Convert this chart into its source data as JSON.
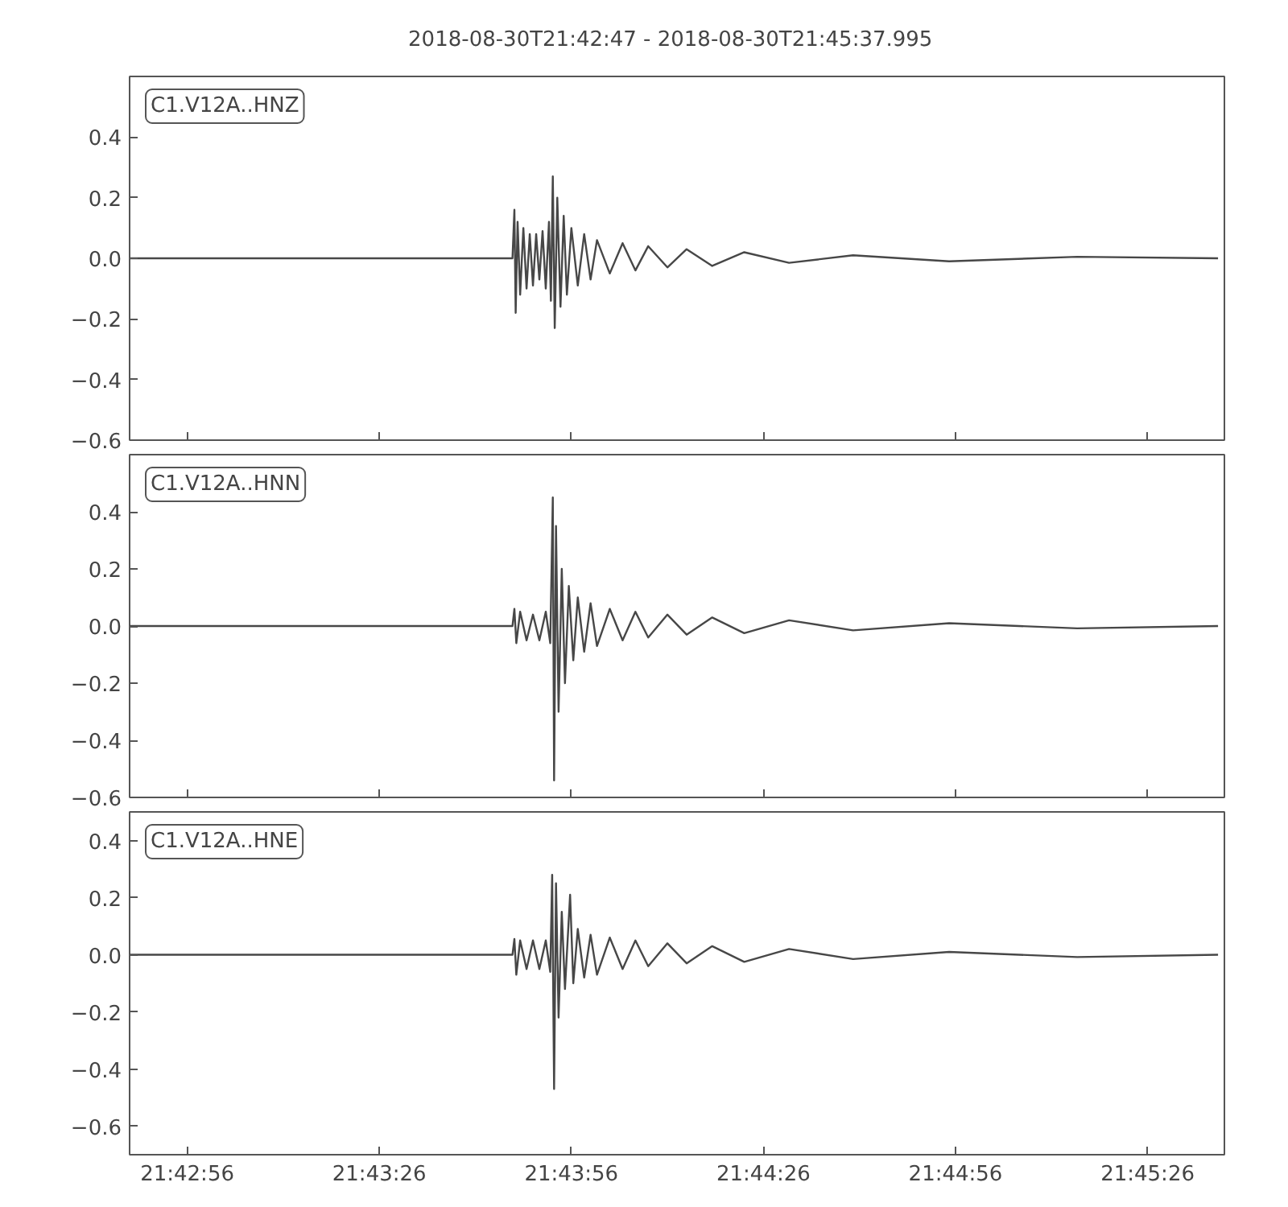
{
  "chart_data": [
    {
      "type": "line",
      "title": "2018-08-30T21:42:47  -  2018-08-30T21:45:37.995",
      "annotations": [
        "C1.V12A..HNZ"
      ],
      "tick_labels": "y",
      "grid": false,
      "xlim": [
        "2018-08-30T21:42:47",
        "2018-08-30T21:45:37.995"
      ],
      "ylim": [
        -0.6,
        0.6
      ],
      "xticks": [
        {
          "value": "2018-08-30T21:42:56",
          "label": null
        },
        {
          "value": "2018-08-30T21:43:26",
          "label": null
        },
        {
          "value": "2018-08-30T21:43:56",
          "label": null
        },
        {
          "value": "2018-08-30T21:44:26",
          "label": null
        },
        {
          "value": "2018-08-30T21:44:56",
          "label": null
        },
        {
          "value": "2018-08-30T21:45:26",
          "label": null
        }
      ],
      "yticks": [
        {
          "value": -0.6,
          "label": "−0.6"
        },
        {
          "value": -0.4,
          "label": "−0.4"
        },
        {
          "value": -0.2,
          "label": "−0.2"
        },
        {
          "value": 0,
          "label": "0.0"
        },
        {
          "value": 0.2,
          "label": "0.2"
        },
        {
          "value": 0.4,
          "label": "0.4"
        }
      ],
      "x": [
        "2018-08-30T21:42:47",
        "2018-08-30T21:43:20",
        "2018-08-30T21:43:46.8",
        "2018-08-30T21:43:47.1",
        "2018-08-30T21:43:47.3",
        "2018-08-30T21:43:47.6",
        "2018-08-30T21:43:48",
        "2018-08-30T21:43:48.5",
        "2018-08-30T21:43:49",
        "2018-08-30T21:43:49.5",
        "2018-08-30T21:43:50",
        "2018-08-30T21:43:50.5",
        "2018-08-30T21:43:51",
        "2018-08-30T21:43:51.5",
        "2018-08-30T21:43:52",
        "2018-08-30T21:43:52.5",
        "2018-08-30T21:43:52.8",
        "2018-08-30T21:43:53.1",
        "2018-08-30T21:43:53.4",
        "2018-08-30T21:43:53.8",
        "2018-08-30T21:43:54.3",
        "2018-08-30T21:43:54.8",
        "2018-08-30T21:43:55.3",
        "2018-08-30T21:43:56",
        "2018-08-30T21:43:57",
        "2018-08-30T21:43:58",
        "2018-08-30T21:43:59",
        "2018-08-30T21:44:00",
        "2018-08-30T21:44:02",
        "2018-08-30T21:44:04",
        "2018-08-30T21:44:06",
        "2018-08-30T21:44:08",
        "2018-08-30T21:44:11",
        "2018-08-30T21:44:14",
        "2018-08-30T21:44:18",
        "2018-08-30T21:44:23",
        "2018-08-30T21:44:30",
        "2018-08-30T21:44:40",
        "2018-08-30T21:44:55",
        "2018-08-30T21:45:15",
        "2018-08-30T21:45:37"
      ],
      "series": [
        {
          "color": "#474747",
          "line_style": "solid",
          "values": [
            0.0,
            0.0,
            0.0,
            0.16,
            -0.18,
            0.12,
            -0.12,
            0.1,
            -0.1,
            0.08,
            -0.09,
            0.08,
            -0.07,
            0.09,
            -0.1,
            0.12,
            -0.14,
            0.27,
            -0.23,
            0.2,
            -0.16,
            0.14,
            -0.12,
            0.1,
            -0.09,
            0.08,
            -0.07,
            0.06,
            -0.05,
            0.05,
            -0.04,
            0.04,
            -0.03,
            0.03,
            -0.025,
            0.02,
            -0.015,
            0.01,
            -0.01,
            0.005,
            0.0
          ]
        }
      ]
    },
    {
      "type": "line",
      "annotations": [
        "C1.V12A..HNN"
      ],
      "tick_labels": "y",
      "grid": false,
      "xlim": [
        "2018-08-30T21:42:47",
        "2018-08-30T21:45:37.995"
      ],
      "ylim": [
        -0.6,
        0.6
      ],
      "xticks": [
        {
          "value": "2018-08-30T21:42:56",
          "label": null
        },
        {
          "value": "2018-08-30T21:43:26",
          "label": null
        },
        {
          "value": "2018-08-30T21:43:56",
          "label": null
        },
        {
          "value": "2018-08-30T21:44:26",
          "label": null
        },
        {
          "value": "2018-08-30T21:44:56",
          "label": null
        },
        {
          "value": "2018-08-30T21:45:26",
          "label": null
        }
      ],
      "yticks": [
        {
          "value": -0.6,
          "label": "−0.6"
        },
        {
          "value": -0.4,
          "label": "−0.4"
        },
        {
          "value": -0.2,
          "label": "−0.2"
        },
        {
          "value": 0,
          "label": "0.0"
        },
        {
          "value": 0.2,
          "label": "0.2"
        },
        {
          "value": 0.4,
          "label": "0.4"
        }
      ],
      "x": [
        "2018-08-30T21:42:47",
        "2018-08-30T21:43:20",
        "2018-08-30T21:43:46.8",
        "2018-08-30T21:43:47.1",
        "2018-08-30T21:43:47.4",
        "2018-08-30T21:43:48",
        "2018-08-30T21:43:49",
        "2018-08-30T21:43:50",
        "2018-08-30T21:43:51",
        "2018-08-30T21:43:52",
        "2018-08-30T21:43:52.7",
        "2018-08-30T21:43:53.1",
        "2018-08-30T21:43:53.3",
        "2018-08-30T21:43:53.6",
        "2018-08-30T21:43:54",
        "2018-08-30T21:43:54.5",
        "2018-08-30T21:43:55",
        "2018-08-30T21:43:55.6",
        "2018-08-30T21:43:56.3",
        "2018-08-30T21:43:57",
        "2018-08-30T21:43:58",
        "2018-08-30T21:43:59",
        "2018-08-30T21:44:00",
        "2018-08-30T21:44:02",
        "2018-08-30T21:44:04",
        "2018-08-30T21:44:06",
        "2018-08-30T21:44:08",
        "2018-08-30T21:44:11",
        "2018-08-30T21:44:14",
        "2018-08-30T21:44:18",
        "2018-08-30T21:44:23",
        "2018-08-30T21:44:30",
        "2018-08-30T21:44:40",
        "2018-08-30T21:44:55",
        "2018-08-30T21:45:15",
        "2018-08-30T21:45:37"
      ],
      "series": [
        {
          "color": "#474747",
          "line_style": "solid",
          "values": [
            0.0,
            0.0,
            0.0,
            0.06,
            -0.06,
            0.05,
            -0.05,
            0.04,
            -0.05,
            0.05,
            -0.06,
            0.45,
            -0.54,
            0.35,
            -0.3,
            0.2,
            -0.2,
            0.14,
            -0.12,
            0.1,
            -0.09,
            0.08,
            -0.07,
            0.06,
            -0.05,
            0.05,
            -0.04,
            0.04,
            -0.03,
            0.03,
            -0.025,
            0.02,
            -0.015,
            0.01,
            -0.008,
            0.0
          ]
        }
      ]
    },
    {
      "type": "line",
      "annotations": [
        "C1.V12A..HNE"
      ],
      "grid": false,
      "xlim": [
        "2018-08-30T21:42:47",
        "2018-08-30T21:45:37.995"
      ],
      "ylim": [
        -0.7,
        0.5
      ],
      "xticks": [
        {
          "value": "2018-08-30T21:42:56",
          "label": "21:42:56"
        },
        {
          "value": "2018-08-30T21:43:26",
          "label": "21:43:26"
        },
        {
          "value": "2018-08-30T21:43:56",
          "label": "21:43:56"
        },
        {
          "value": "2018-08-30T21:44:26",
          "label": "21:44:26"
        },
        {
          "value": "2018-08-30T21:44:56",
          "label": "21:44:56"
        },
        {
          "value": "2018-08-30T21:45:26",
          "label": "21:45:26"
        }
      ],
      "yticks": [
        {
          "value": -0.6,
          "label": "−0.6"
        },
        {
          "value": -0.4,
          "label": "−0.4"
        },
        {
          "value": -0.2,
          "label": "−0.2"
        },
        {
          "value": 0,
          "label": "0.0"
        },
        {
          "value": 0.2,
          "label": "0.2"
        },
        {
          "value": 0.4,
          "label": "0.4"
        }
      ],
      "x": [
        "2018-08-30T21:42:47",
        "2018-08-30T21:43:20",
        "2018-08-30T21:43:46.8",
        "2018-08-30T21:43:47.1",
        "2018-08-30T21:43:47.4",
        "2018-08-30T21:43:48",
        "2018-08-30T21:43:49",
        "2018-08-30T21:43:50",
        "2018-08-30T21:43:51",
        "2018-08-30T21:43:52",
        "2018-08-30T21:43:52.7",
        "2018-08-30T21:43:53.0",
        "2018-08-30T21:43:53.3",
        "2018-08-30T21:43:53.6",
        "2018-08-30T21:43:54",
        "2018-08-30T21:43:54.5",
        "2018-08-30T21:43:55",
        "2018-08-30T21:43:55.8",
        "2018-08-30T21:43:56.3",
        "2018-08-30T21:43:57",
        "2018-08-30T21:43:58",
        "2018-08-30T21:43:59",
        "2018-08-30T21:44:00",
        "2018-08-30T21:44:02",
        "2018-08-30T21:44:04",
        "2018-08-30T21:44:06",
        "2018-08-30T21:44:08",
        "2018-08-30T21:44:11",
        "2018-08-30T21:44:14",
        "2018-08-30T21:44:18",
        "2018-08-30T21:44:23",
        "2018-08-30T21:44:30",
        "2018-08-30T21:44:40",
        "2018-08-30T21:44:55",
        "2018-08-30T21:45:15",
        "2018-08-30T21:45:37"
      ],
      "series": [
        {
          "color": "#474747",
          "line_style": "solid",
          "values": [
            0.0,
            0.0,
            0.0,
            0.055,
            -0.07,
            0.05,
            -0.05,
            0.05,
            -0.05,
            0.05,
            -0.06,
            0.28,
            -0.47,
            0.25,
            -0.22,
            0.15,
            -0.12,
            0.21,
            -0.1,
            0.09,
            -0.08,
            0.07,
            -0.07,
            0.06,
            -0.05,
            0.05,
            -0.04,
            0.04,
            -0.03,
            0.03,
            -0.025,
            0.02,
            -0.015,
            0.01,
            -0.008,
            0.0
          ]
        }
      ]
    }
  ]
}
